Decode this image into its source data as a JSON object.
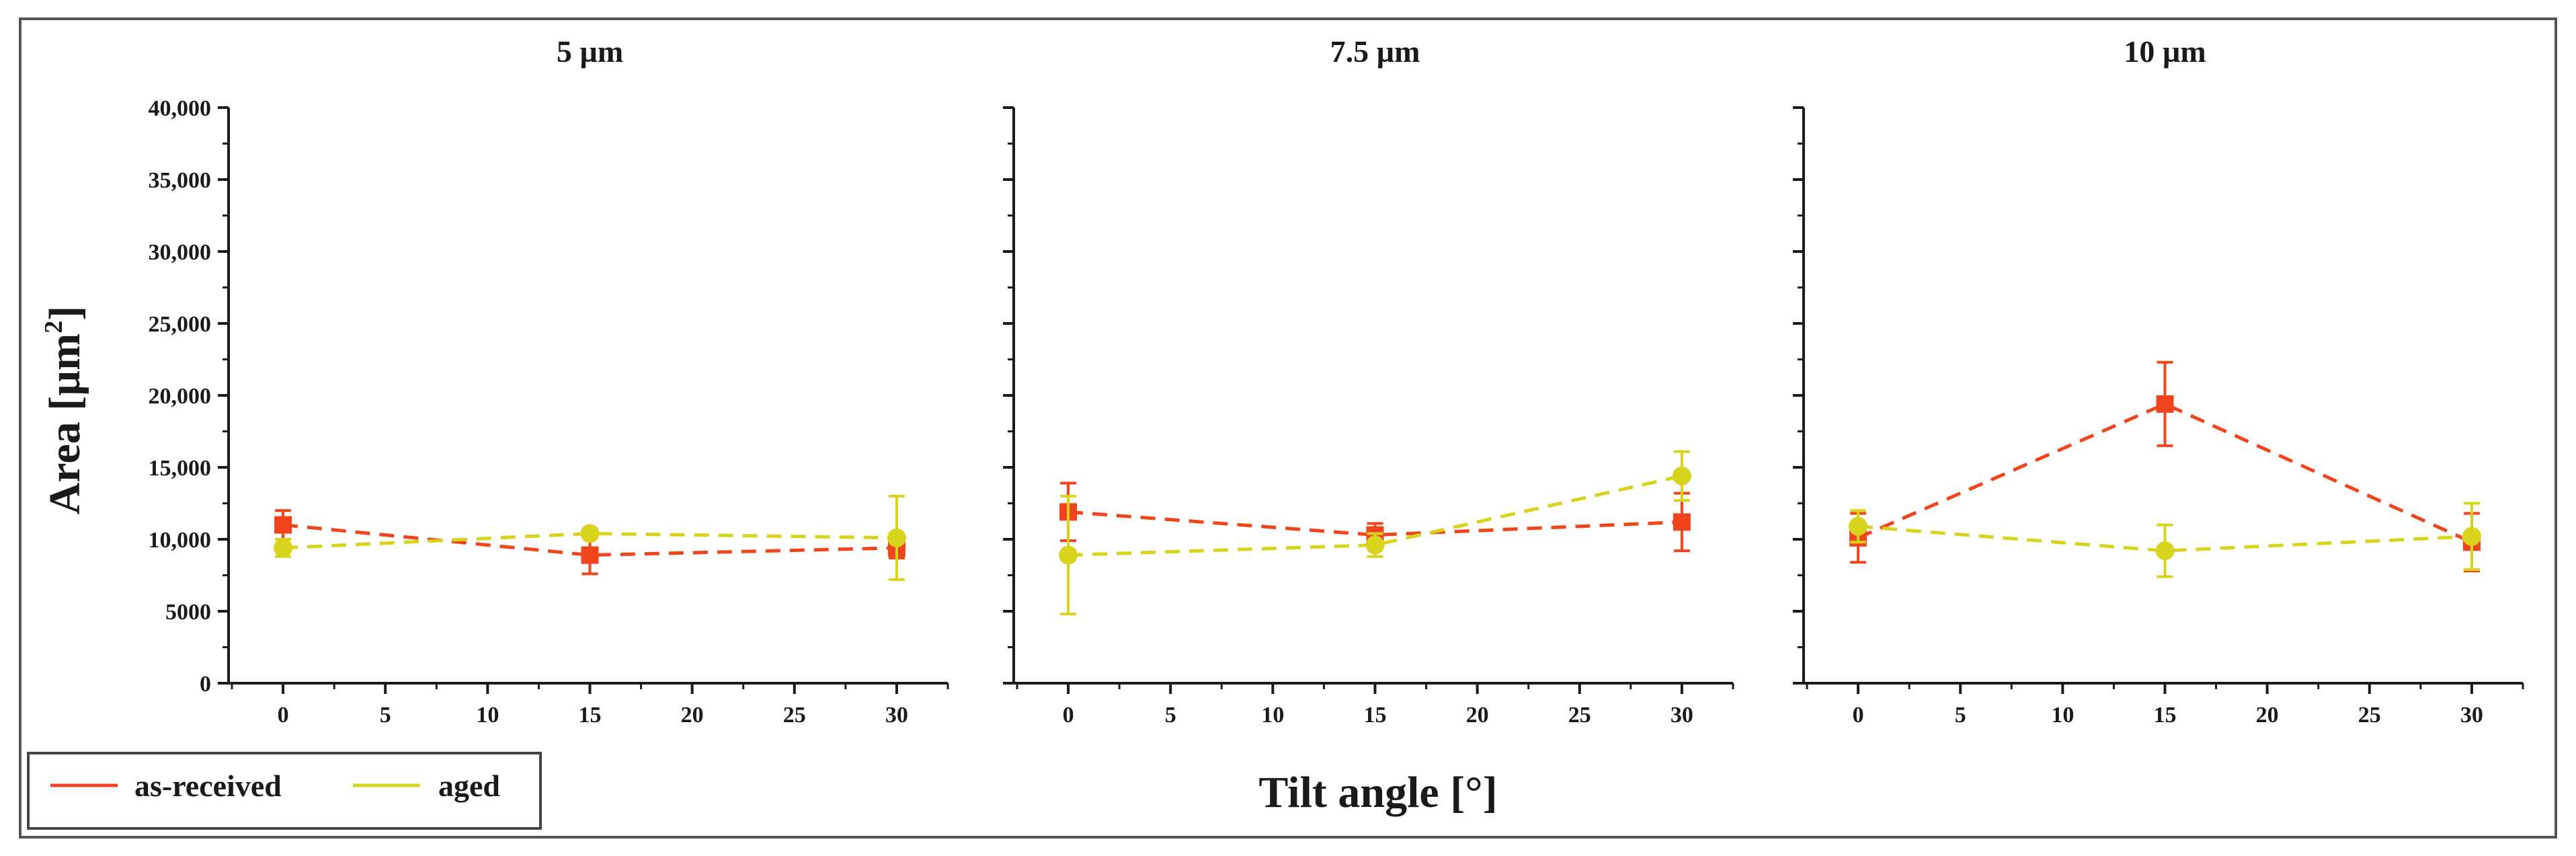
{
  "chart_data": {
    "type": "line",
    "xlabel": "Tilt angle [°]",
    "ylabel": "Area [µm²]",
    "ylabel_main": "Area [µm",
    "ylabel_sup": "2",
    "ylabel_end": "]",
    "ylim": [
      0,
      40000
    ],
    "xlim": [
      -2.5,
      32.5
    ],
    "yticks": [
      0,
      5000,
      10000,
      15000,
      20000,
      25000,
      30000,
      35000,
      40000
    ],
    "yticklabels": [
      "0",
      "5000",
      "10,000",
      "15,000",
      "20,000",
      "25,000",
      "30,000",
      "35,000",
      "40,000"
    ],
    "xticks": [
      0,
      5,
      10,
      15,
      20,
      25,
      30
    ],
    "xticklabels": [
      "0",
      "5",
      "10",
      "15",
      "20",
      "25",
      "30"
    ],
    "legend": [
      {
        "name": "as-received",
        "color": "#f0441c"
      },
      {
        "name": "aged",
        "color": "#d8d41e"
      }
    ],
    "panels": [
      {
        "title": "5 µm",
        "series": [
          {
            "name": "as-received",
            "color": "#f0441c",
            "marker": "square",
            "x": [
              0,
              15,
              30
            ],
            "y": [
              11000,
              8900,
              9400
            ],
            "err": [
              1000,
              1300,
              700
            ]
          },
          {
            "name": "aged",
            "color": "#d8d41e",
            "marker": "circle",
            "x": [
              0,
              15,
              30
            ],
            "y": [
              9400,
              10400,
              10100
            ],
            "err": [
              600,
              200,
              2900
            ]
          }
        ]
      },
      {
        "title": "7.5 µm",
        "series": [
          {
            "name": "as-received",
            "color": "#f0441c",
            "marker": "square",
            "x": [
              0,
              15,
              30
            ],
            "y": [
              11900,
              10300,
              11200
            ],
            "err": [
              2000,
              800,
              2000
            ]
          },
          {
            "name": "aged",
            "color": "#d8d41e",
            "marker": "circle",
            "x": [
              0,
              15,
              30
            ],
            "y": [
              8900,
              9600,
              14400
            ],
            "err": [
              4100,
              800,
              1700
            ]
          }
        ]
      },
      {
        "title": "10 µm",
        "series": [
          {
            "name": "as-received",
            "color": "#f0441c",
            "marker": "square",
            "x": [
              0,
              15,
              30
            ],
            "y": [
              10100,
              19400,
              9800
            ],
            "err": [
              1700,
              2900,
              2000
            ]
          },
          {
            "name": "aged",
            "color": "#d8d41e",
            "marker": "circle",
            "x": [
              0,
              15,
              30
            ],
            "y": [
              10900,
              9200,
              10200
            ],
            "err": [
              1100,
              1800,
              2300
            ]
          }
        ]
      }
    ]
  }
}
